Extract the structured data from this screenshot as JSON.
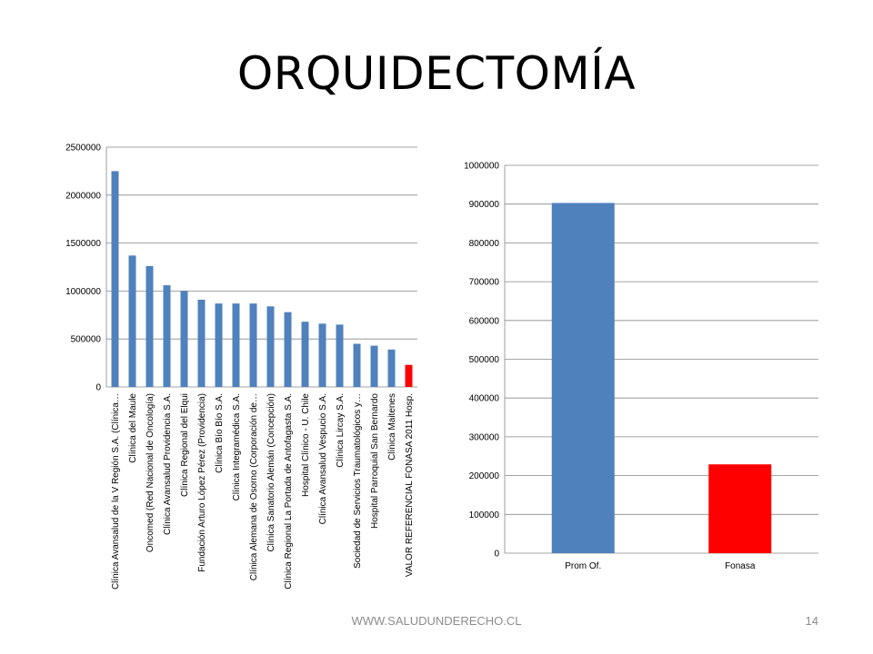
{
  "slide": {
    "title": "ORQUIDECTOMÍA",
    "footer": "WWW.SALUDUNDERECHO.CL",
    "page_number": "14"
  },
  "chart_data": [
    {
      "type": "bar",
      "categories": [
        "Clínica Avansalud de la V Región S.A. (Clínica…",
        "Clínica del Maule",
        "Oncomed (Red Nacional de Oncología)",
        "Clínica Avansalud Providencia S.A.",
        "Clínica Regional del Elqui",
        "Fundación Arturo López Pérez (Providencia)",
        "Clínica Bío Bío S.A.",
        "Clínica Integramédica S.A.",
        "Clínica Alemana de Osorno (Corporación de…",
        "Clínica Sanatorio Alemán (Concepción)",
        "Clínica Regional La Portada de Antofagasta S.A.",
        "Hospital Clínico - U. Chile",
        "Clínica Avansalud Vespucio S.A.",
        "Clínica Lircay S.A.",
        "Sociedad de Servicios Traumatológicos y…",
        "Hospital Parroquial San Bernardo",
        "Clínica Maitenes",
        "VALOR REFERENCIAL FONASA 2011 Hosp."
      ],
      "values": [
        2250000,
        1370000,
        1260000,
        1060000,
        1000000,
        910000,
        870000,
        870000,
        870000,
        840000,
        780000,
        680000,
        660000,
        650000,
        450000,
        430000,
        390000,
        230000
      ],
      "colors": [
        "#4f81bd",
        "#4f81bd",
        "#4f81bd",
        "#4f81bd",
        "#4f81bd",
        "#4f81bd",
        "#4f81bd",
        "#4f81bd",
        "#4f81bd",
        "#4f81bd",
        "#4f81bd",
        "#4f81bd",
        "#4f81bd",
        "#4f81bd",
        "#4f81bd",
        "#4f81bd",
        "#4f81bd",
        "#ff0000"
      ],
      "yticks": [
        "0",
        "500000",
        "1000000",
        "1500000",
        "2000000",
        "2500000"
      ],
      "ylim": [
        0,
        2500000
      ],
      "grid": true,
      "title": "",
      "xlabel": "",
      "ylabel": ""
    },
    {
      "type": "bar",
      "categories": [
        "Prom Of.",
        "Fonasa"
      ],
      "values": [
        903000,
        229000
      ],
      "colors": [
        "#4f81bd",
        "#ff0000"
      ],
      "yticks": [
        "0",
        "100000",
        "200000",
        "300000",
        "400000",
        "500000",
        "600000",
        "700000",
        "800000",
        "900000",
        "1000000"
      ],
      "ylim": [
        0,
        1000000
      ],
      "grid": true,
      "title": "",
      "xlabel": "",
      "ylabel": ""
    }
  ]
}
